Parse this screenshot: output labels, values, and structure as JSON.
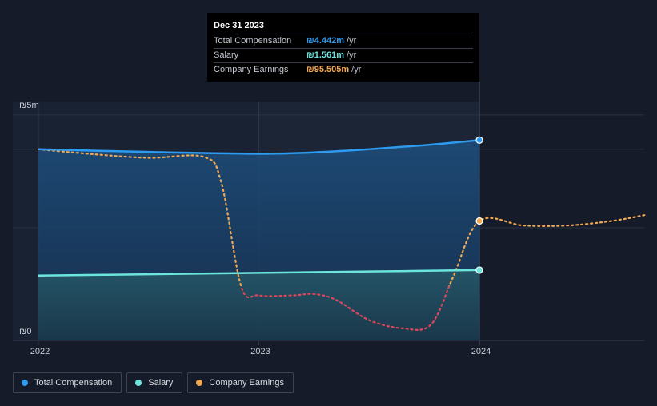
{
  "chart_data": {
    "type": "line",
    "currency": "₪",
    "x_ticks": [
      "2022",
      "2023",
      "2024"
    ],
    "y_ticks": [
      {
        "value": 0,
        "label": "₪0"
      },
      {
        "value": 5,
        "label": "₪5m"
      }
    ],
    "ylim": [
      0,
      5.3
    ],
    "xlim": [
      2022.0,
      2024.75
    ],
    "series": [
      {
        "name": "Total Compensation",
        "color": "#2d9bf0",
        "style": "solid",
        "area": true,
        "points": [
          [
            2022.0,
            4.24
          ],
          [
            2022.5,
            4.18
          ],
          [
            2023.0,
            4.14
          ],
          [
            2023.25,
            4.17
          ],
          [
            2023.5,
            4.24
          ],
          [
            2023.75,
            4.33
          ],
          [
            2024.0,
            4.442
          ]
        ]
      },
      {
        "name": "Salary",
        "color": "#6ce5dd",
        "style": "solid",
        "area": true,
        "points": [
          [
            2022.0,
            1.44
          ],
          [
            2022.5,
            1.47
          ],
          [
            2023.0,
            1.5
          ],
          [
            2023.5,
            1.53
          ],
          [
            2024.0,
            1.561
          ]
        ]
      },
      {
        "name": "Company Earnings",
        "color": "#f2a852",
        "negative_color": "#e0465a",
        "style": "dotted",
        "area": false,
        "points": [
          [
            2022.0,
            4.24
          ],
          [
            2022.25,
            4.13
          ],
          [
            2022.5,
            4.05
          ],
          [
            2022.75,
            4.07
          ],
          [
            2022.83,
            3.5
          ],
          [
            2022.92,
            1.2
          ],
          [
            2023.0,
            1.0
          ],
          [
            2023.15,
            1.0
          ],
          [
            2023.25,
            1.03
          ],
          [
            2023.35,
            0.9
          ],
          [
            2023.5,
            0.45
          ],
          [
            2023.65,
            0.27
          ],
          [
            2023.78,
            0.35
          ],
          [
            2023.88,
            1.4
          ],
          [
            2024.0,
            2.65
          ],
          [
            2024.2,
            2.55
          ],
          [
            2024.4,
            2.55
          ],
          [
            2024.6,
            2.65
          ],
          [
            2024.75,
            2.78
          ]
        ]
      }
    ],
    "highlight_x": 2024.0
  },
  "tooltip": {
    "date": "Dec 31 2023",
    "rows": [
      {
        "label": "Total Compensation",
        "value": "₪4.442m",
        "unit": "/yr",
        "color": "#2d9bf0"
      },
      {
        "label": "Salary",
        "value": "₪1.561m",
        "unit": "/yr",
        "color": "#6ce5dd"
      },
      {
        "label": "Company Earnings",
        "value": "₪95.505m",
        "unit": "/yr",
        "color": "#f2a852"
      }
    ]
  },
  "legend": [
    {
      "label": "Total Compensation",
      "color": "#2d9bf0"
    },
    {
      "label": "Salary",
      "color": "#6ce5dd"
    },
    {
      "label": "Company Earnings",
      "color": "#f2a852"
    }
  ]
}
